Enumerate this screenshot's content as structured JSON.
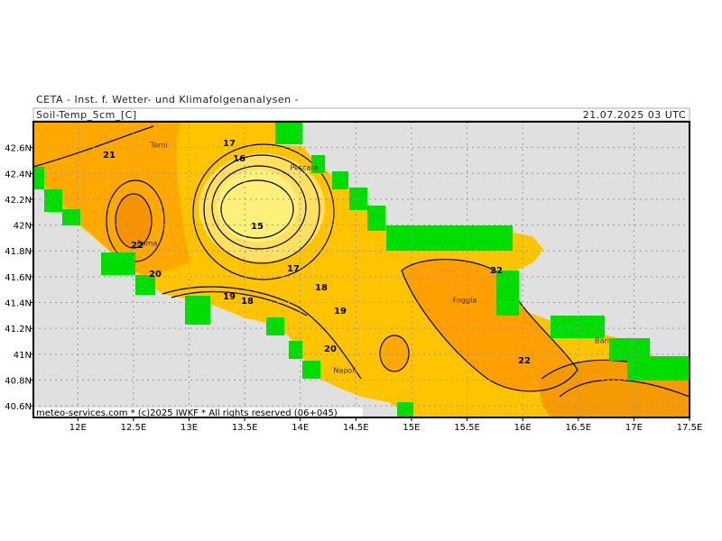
{
  "header": {
    "title": "CETA - Inst. f. Wetter- und Klimafolgenanalysen -",
    "variable": "Soil-Temp_5cm_[C]",
    "valid_time": "21.07.2025 03 UTC"
  },
  "map": {
    "lon_range": [
      11.6,
      17.5
    ],
    "lat_range": [
      40.51,
      42.8
    ],
    "lon_ticks": [
      {
        "value": 12,
        "label": "12E"
      },
      {
        "value": 12.5,
        "label": "12.5E"
      },
      {
        "value": 13,
        "label": "13E"
      },
      {
        "value": 13.5,
        "label": "13.5E"
      },
      {
        "value": 14,
        "label": "14E"
      },
      {
        "value": 14.5,
        "label": "14.5E"
      },
      {
        "value": 15,
        "label": "15E"
      },
      {
        "value": 15.5,
        "label": "15.5E"
      },
      {
        "value": 16,
        "label": "16E"
      },
      {
        "value": 16.5,
        "label": "16.5E"
      },
      {
        "value": 17,
        "label": "17E"
      },
      {
        "value": 17.5,
        "label": "17.5E"
      }
    ],
    "lat_ticks": [
      {
        "value": 42.6,
        "label": "42.6N"
      },
      {
        "value": 42.4,
        "label": "42.4N"
      },
      {
        "value": 42.2,
        "label": "42.2N"
      },
      {
        "value": 42,
        "label": "42N"
      },
      {
        "value": 41.8,
        "label": "41.8N"
      },
      {
        "value": 41.6,
        "label": "41.6N"
      },
      {
        "value": 41.4,
        "label": "41.4N"
      },
      {
        "value": 41.2,
        "label": "41.2N"
      },
      {
        "value": 41,
        "label": "41N"
      },
      {
        "value": 40.8,
        "label": "40.8N"
      },
      {
        "value": 40.6,
        "label": "40.6N"
      }
    ],
    "contour_labels": [
      "21",
      "17",
      "16",
      "15",
      "22",
      "20",
      "17",
      "18",
      "19",
      "18",
      "19",
      "20",
      "22",
      "22"
    ],
    "cities": [
      "Terni",
      "Pescara",
      "Roma",
      "Foggia",
      "Napoli",
      "Bari"
    ]
  },
  "footer": {
    "credit": "meteo-services.com * (c)2025 IWKF * All rights reserved (06+045)"
  }
}
